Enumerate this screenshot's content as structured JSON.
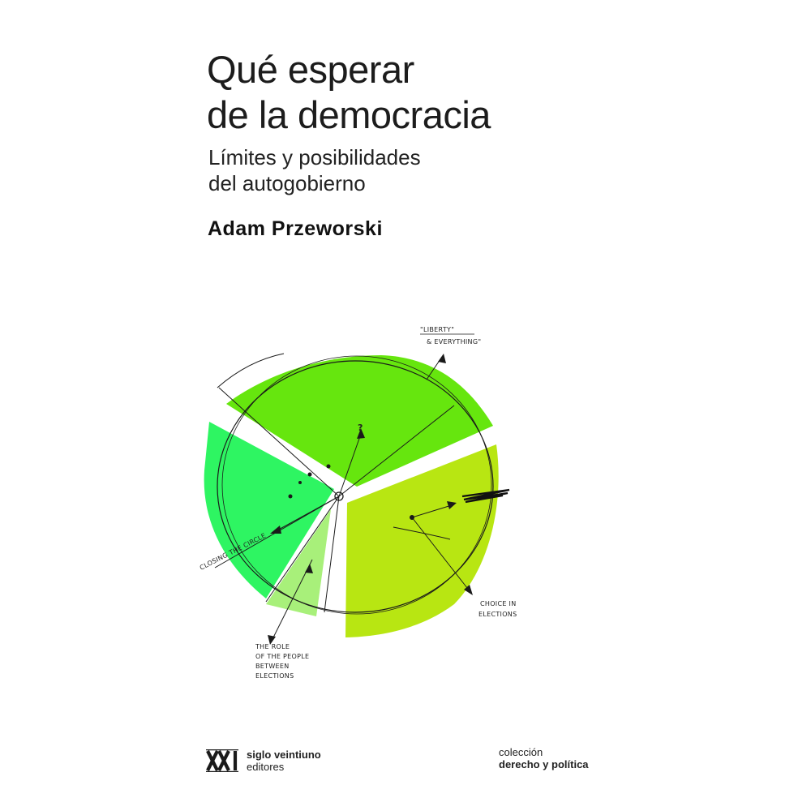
{
  "cover": {
    "title_line1": "Qué esperar",
    "title_line2": "de la democracia",
    "subtitle_line1": "Límites y posibilidades",
    "subtitle_line2": "del autogobierno",
    "author": "Adam Przeworski"
  },
  "illustration": {
    "colors": {
      "top_slice": "#66e60e",
      "left_slice": "#2ef562",
      "right_slice": "#b8e612",
      "small_slice": "#a8f07a"
    },
    "notes": {
      "liberty_1": "\"LIBERTY\"",
      "liberty_2": "& EVERYTHING\"",
      "closing": "CLOSING THE CIRCLE",
      "choice_1": "CHOICE IN",
      "choice_2": "ELECTIONS",
      "role_1": "THE ROLE",
      "role_2": "OF THE PEOPLE",
      "role_3": "BETWEEN",
      "role_4": "ELECTIONS"
    }
  },
  "footer": {
    "publisher_line1": "siglo veintiuno",
    "publisher_line2": "editores",
    "collection_line1": "colección",
    "collection_line2": "derecho y política"
  }
}
